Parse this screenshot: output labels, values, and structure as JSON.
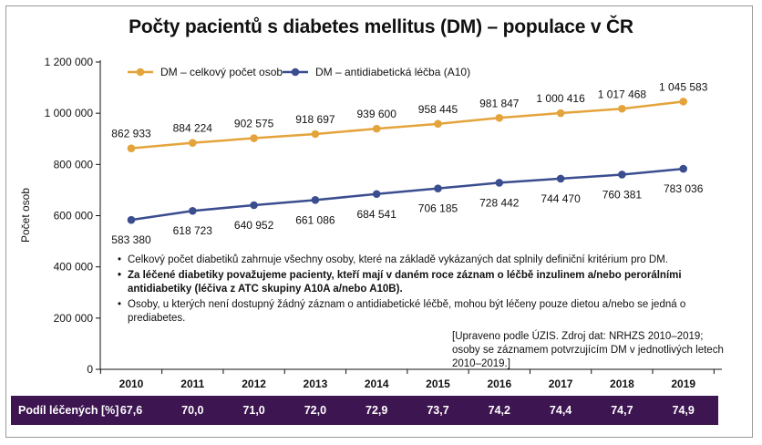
{
  "chart_data": {
    "type": "line",
    "title": "Počty pacientů s diabetes mellitus (DM) – populace v ČR",
    "ylabel": "Počet osob",
    "xlabel": "",
    "ylim": [
      0,
      1200000
    ],
    "yticks": [
      "0",
      "200 000",
      "400 000",
      "600 000",
      "800 000",
      "1 000 000",
      "1 200 000"
    ],
    "ytick_values": [
      0,
      200000,
      400000,
      600000,
      800000,
      1000000,
      1200000
    ],
    "categories": [
      "2010",
      "2011",
      "2012",
      "2013",
      "2014",
      "2015",
      "2016",
      "2017",
      "2018",
      "2019"
    ],
    "legend_position": "top-left",
    "series": [
      {
        "name": "DM – celkový počet osob",
        "color": "#e4a43b",
        "values": [
          862933,
          884224,
          902575,
          918697,
          939600,
          958445,
          981847,
          1000416,
          1017468,
          1045583
        ],
        "labels": [
          "862 933",
          "884 224",
          "902 575",
          "918 697",
          "939 600",
          "958 445",
          "981 847",
          "1 000 416",
          "1 017 468",
          "1 045 583"
        ]
      },
      {
        "name": "DM – antidiabetická léčba (A10)",
        "color": "#3a4d8f",
        "values": [
          583380,
          618723,
          640952,
          661086,
          684541,
          706185,
          728442,
          744470,
          760381,
          783036
        ],
        "labels": [
          "583 380",
          "618 723",
          "640 952",
          "661 086",
          "684 541",
          "706 185",
          "728 442",
          "744 470",
          "760 381",
          "783 036"
        ]
      }
    ]
  },
  "notes": {
    "note1": "Celkový počet diabetiků zahrnuje všechny osoby, které na základě vykázaných dat splnily definiční kritérium pro DM.",
    "note2": "Za léčené diabetiky považujeme pacienty, kteří mají v daném roce záznam o léčbě inzulinem a/nebo perorálními antidiabetiky (léčiva z ATC skupiny A10A a/nebo A10B).",
    "note3": "Osoby, u kterých není dostupný žádný záznam o antidiabetické léčbě, mohou být léčeny pouze dietou a/nebo se jedná o prediabetes."
  },
  "source": "[Upraveno podle ÚZIS. Zdroj dat: NRHZS 2010–2019; osoby se záznamem potvrzujícím DM v jednotlivých letech 2010–2019.]",
  "treated_share": {
    "label": "Podíl léčených [%]",
    "values": [
      "67,6",
      "70,0",
      "71,0",
      "72,0",
      "72,9",
      "73,7",
      "74,2",
      "74,4",
      "74,7",
      "74,9"
    ]
  },
  "colors": {
    "bar_background": "#3d1550",
    "series1": "#e4a43b",
    "series2": "#3a4d8f"
  }
}
